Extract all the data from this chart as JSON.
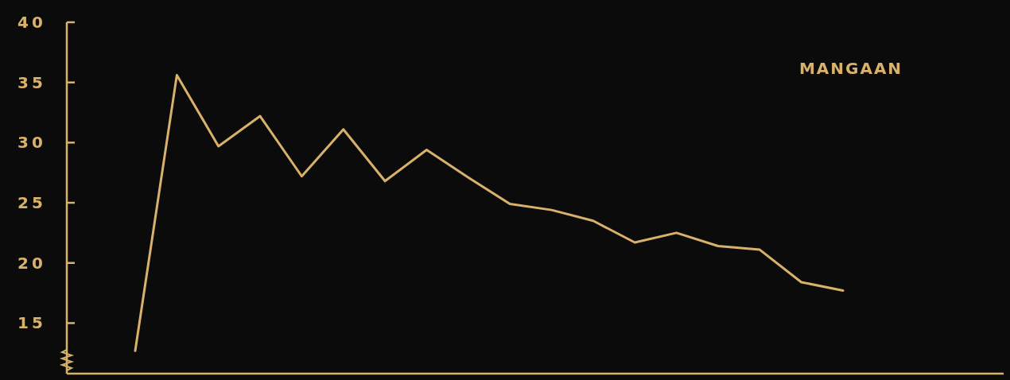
{
  "chart_data": {
    "type": "line",
    "title": "MANGAAN",
    "categories": [
      null,
      null,
      null,
      null,
      null,
      null,
      null,
      null,
      null,
      null,
      null,
      null,
      null,
      null,
      null,
      null,
      null,
      null
    ],
    "series": [
      {
        "color": "#d8b26a",
        "values": [
          12.7,
          35.6,
          29.7,
          32.2,
          27.2,
          31.1,
          26.8,
          29.4,
          27.1,
          24.9,
          24.4,
          23.5,
          21.7,
          22.5,
          21.4,
          21.1,
          18.4,
          17.7
        ]
      }
    ],
    "ylim": [
      10.8,
      40
    ],
    "yticks": [
      15,
      20,
      25,
      30,
      35,
      40
    ],
    "grid": false,
    "marker": "none",
    "line_style": "solid"
  }
}
